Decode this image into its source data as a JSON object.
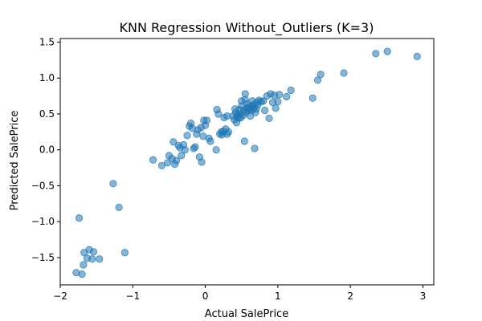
{
  "chart_data": {
    "type": "scatter",
    "title": "KNN Regression Without_Outliers (K=3)",
    "xlabel": "Actual SalePrice",
    "ylabel": "Predicted SalePrice",
    "xlim": [
      -2.0,
      3.15
    ],
    "ylim": [
      -1.88,
      1.55
    ],
    "xticks": [
      -2,
      -1,
      0,
      1,
      2,
      3
    ],
    "yticks": [
      -1.5,
      -1.0,
      -0.5,
      0.0,
      0.5,
      1.0,
      1.5
    ],
    "xtick_labels": [
      "−2",
      "−1",
      "0",
      "1",
      "2",
      "3"
    ],
    "ytick_labels": [
      "−1.5",
      "−1.0",
      "−0.5",
      "0.0",
      "0.5",
      "1.0",
      "1.5"
    ],
    "grid": false,
    "marker_color": "#1f77b4",
    "marker_alpha": 0.55,
    "points": [
      {
        "x": -1.78,
        "y": -1.71
      },
      {
        "x": -1.7,
        "y": -1.73
      },
      {
        "x": -1.68,
        "y": -1.6
      },
      {
        "x": -1.67,
        "y": -1.43
      },
      {
        "x": -1.63,
        "y": -1.51
      },
      {
        "x": -1.6,
        "y": -1.39
      },
      {
        "x": -1.56,
        "y": -1.52
      },
      {
        "x": -1.54,
        "y": -1.42
      },
      {
        "x": -1.46,
        "y": -1.52
      },
      {
        "x": -1.74,
        "y": -0.95
      },
      {
        "x": -1.27,
        "y": -0.47
      },
      {
        "x": -1.19,
        "y": -0.8
      },
      {
        "x": -1.11,
        "y": -1.43
      },
      {
        "x": -0.72,
        "y": -0.14
      },
      {
        "x": -0.6,
        "y": -0.22
      },
      {
        "x": -0.52,
        "y": -0.18
      },
      {
        "x": -0.5,
        "y": -0.08
      },
      {
        "x": -0.46,
        "y": -0.12
      },
      {
        "x": -0.44,
        "y": 0.11
      },
      {
        "x": -0.42,
        "y": -0.2
      },
      {
        "x": -0.4,
        "y": -0.15
      },
      {
        "x": -0.37,
        "y": 0.06
      },
      {
        "x": -0.35,
        "y": 0.03
      },
      {
        "x": -0.33,
        "y": -0.08
      },
      {
        "x": -0.3,
        "y": 0.07
      },
      {
        "x": -0.28,
        "y": 0.0
      },
      {
        "x": -0.25,
        "y": 0.2
      },
      {
        "x": -0.22,
        "y": 0.33
      },
      {
        "x": -0.2,
        "y": 0.37
      },
      {
        "x": -0.18,
        "y": 0.3
      },
      {
        "x": -0.16,
        "y": 0.02
      },
      {
        "x": -0.14,
        "y": 0.04
      },
      {
        "x": -0.12,
        "y": 0.22
      },
      {
        "x": -0.1,
        "y": 0.28
      },
      {
        "x": -0.08,
        "y": -0.1
      },
      {
        "x": -0.06,
        "y": 0.31
      },
      {
        "x": -0.05,
        "y": -0.17
      },
      {
        "x": -0.03,
        "y": 0.19
      },
      {
        "x": -0.02,
        "y": 0.41
      },
      {
        "x": 0.0,
        "y": 0.34
      },
      {
        "x": 0.02,
        "y": 0.41
      },
      {
        "x": 0.05,
        "y": 0.16
      },
      {
        "x": 0.07,
        "y": 0.12
      },
      {
        "x": 0.15,
        "y": 0.0
      },
      {
        "x": 0.16,
        "y": 0.56
      },
      {
        "x": 0.18,
        "y": 0.5
      },
      {
        "x": 0.2,
        "y": 0.22
      },
      {
        "x": 0.22,
        "y": 0.25
      },
      {
        "x": 0.23,
        "y": 0.21
      },
      {
        "x": 0.25,
        "y": 0.26
      },
      {
        "x": 0.26,
        "y": 0.45
      },
      {
        "x": 0.28,
        "y": 0.29
      },
      {
        "x": 0.3,
        "y": 0.47
      },
      {
        "x": 0.3,
        "y": 0.22
      },
      {
        "x": 0.32,
        "y": 0.25
      },
      {
        "x": 0.38,
        "y": 0.47
      },
      {
        "x": 0.4,
        "y": 0.42
      },
      {
        "x": 0.41,
        "y": 0.57
      },
      {
        "x": 0.42,
        "y": 0.52
      },
      {
        "x": 0.43,
        "y": 0.38
      },
      {
        "x": 0.44,
        "y": 0.46
      },
      {
        "x": 0.45,
        "y": 0.49
      },
      {
        "x": 0.46,
        "y": 0.44
      },
      {
        "x": 0.47,
        "y": 0.56
      },
      {
        "x": 0.48,
        "y": 0.5
      },
      {
        "x": 0.49,
        "y": 0.45
      },
      {
        "x": 0.5,
        "y": 0.61
      },
      {
        "x": 0.5,
        "y": 0.68
      },
      {
        "x": 0.52,
        "y": 0.48
      },
      {
        "x": 0.53,
        "y": 0.55
      },
      {
        "x": 0.54,
        "y": 0.12
      },
      {
        "x": 0.55,
        "y": 0.7
      },
      {
        "x": 0.55,
        "y": 0.78
      },
      {
        "x": 0.56,
        "y": 0.52
      },
      {
        "x": 0.57,
        "y": 0.58
      },
      {
        "x": 0.58,
        "y": 0.64
      },
      {
        "x": 0.59,
        "y": 0.55
      },
      {
        "x": 0.6,
        "y": 0.6
      },
      {
        "x": 0.61,
        "y": 0.57
      },
      {
        "x": 0.62,
        "y": 0.47
      },
      {
        "x": 0.63,
        "y": 0.61
      },
      {
        "x": 0.64,
        "y": 0.55
      },
      {
        "x": 0.65,
        "y": 0.68
      },
      {
        "x": 0.66,
        "y": 0.58
      },
      {
        "x": 0.67,
        "y": 0.63
      },
      {
        "x": 0.68,
        "y": 0.02
      },
      {
        "x": 0.69,
        "y": 0.52
      },
      {
        "x": 0.7,
        "y": 0.57
      },
      {
        "x": 0.71,
        "y": 0.66
      },
      {
        "x": 0.72,
        "y": 0.62
      },
      {
        "x": 0.74,
        "y": 0.69
      },
      {
        "x": 0.77,
        "y": 0.67
      },
      {
        "x": 0.8,
        "y": 0.68
      },
      {
        "x": 0.82,
        "y": 0.55
      },
      {
        "x": 0.85,
        "y": 0.75
      },
      {
        "x": 0.88,
        "y": 0.44
      },
      {
        "x": 0.9,
        "y": 0.78
      },
      {
        "x": 0.93,
        "y": 0.66
      },
      {
        "x": 0.95,
        "y": 0.76
      },
      {
        "x": 0.97,
        "y": 0.58
      },
      {
        "x": 1.0,
        "y": 0.67
      },
      {
        "x": 1.02,
        "y": 0.77
      },
      {
        "x": 1.12,
        "y": 0.74
      },
      {
        "x": 1.18,
        "y": 0.83
      },
      {
        "x": 1.48,
        "y": 0.72
      },
      {
        "x": 1.55,
        "y": 0.97
      },
      {
        "x": 1.59,
        "y": 1.05
      },
      {
        "x": 1.91,
        "y": 1.07
      },
      {
        "x": 2.35,
        "y": 1.34
      },
      {
        "x": 2.51,
        "y": 1.37
      },
      {
        "x": 2.92,
        "y": 1.3
      }
    ]
  }
}
